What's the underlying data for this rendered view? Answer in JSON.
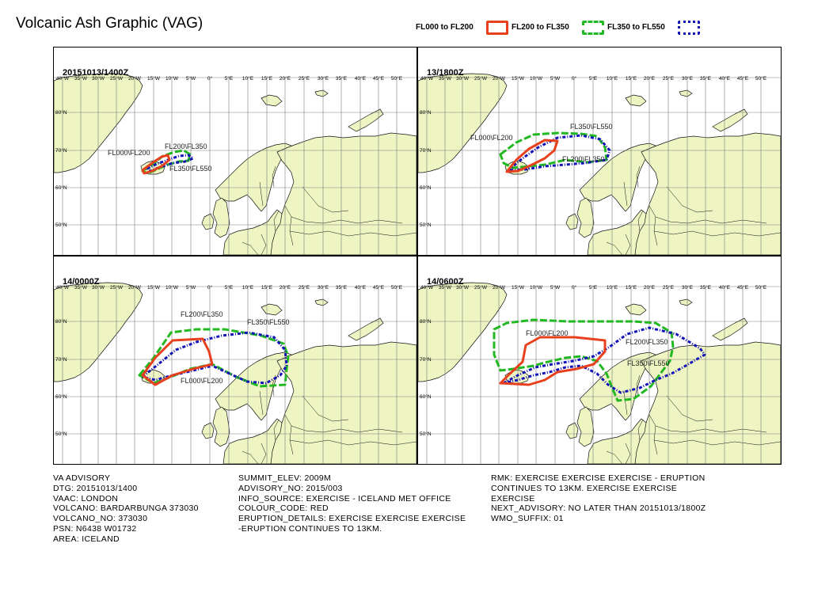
{
  "title": "Volcanic Ash Graphic (VAG)",
  "legend": [
    {
      "label": "FL000 to FL200",
      "color": "#e8401c",
      "style": "solid"
    },
    {
      "label": "FL200 to FL350",
      "color": "#22b822",
      "style": "dashed"
    },
    {
      "label": "FL350 to FL550",
      "color": "#1212b8",
      "style": "dotted"
    }
  ],
  "colors": {
    "land": "#eef5c2",
    "water": "#ffffff",
    "grid": "#7a7a7a",
    "coast": "#111111"
  },
  "map": {
    "lon_labels": [
      "40°W",
      "35°W",
      "30°W",
      "25°W",
      "20°W",
      "15°W",
      "10°W",
      "5°W",
      "0°",
      "5°E",
      "10°E",
      "15°E",
      "20°E",
      "25°E",
      "30°E",
      "35°E",
      "40°E",
      "45°E",
      "50°E"
    ],
    "lat_labels": [
      "80°N",
      "70°N",
      "60°N",
      "50°N"
    ]
  },
  "panels": [
    {
      "time": "20151013/1400Z",
      "labels": [
        "FL200\\FL350",
        "FL000\\FL200",
        "FL350\\FL550"
      ]
    },
    {
      "time": "13/1800Z",
      "labels": [
        "FL350\\FL550",
        "FL000\\FL200",
        "FL200\\FL350"
      ]
    },
    {
      "time": "14/0000Z",
      "labels": [
        "FL200\\FL350",
        "FL350\\FL550",
        "FL000\\FL200"
      ]
    },
    {
      "time": "14/0600Z",
      "labels": [
        "FL000\\FL200",
        "FL200\\FL350",
        "FL350\\FL550"
      ]
    }
  ],
  "info": {
    "col1": [
      "VA ADVISORY",
      "DTG: 20151013/1400",
      "VAAC: LONDON",
      "VOLCANO: BARDARBUNGA 373030",
      "VOLCANO_NO: 373030",
      "PSN: N6438 W01732",
      "AREA: ICELAND"
    ],
    "col2": [
      "SUMMIT_ELEV: 2009M",
      "ADVISORY_NO: 2015/003",
      "INFO_SOURCE: EXERCISE - ICELAND MET OFFICE",
      "COLOUR_CODE: RED",
      "ERUPTION_DETAILS: EXERCISE EXERCISE EXERCISE",
      "-ERUPTION CONTINUES TO 13KM."
    ],
    "col3": [
      "RMK: EXERCISE EXERCISE EXERCISE - ERUPTION",
      "CONTINUES TO 13KM. EXERCISE EXERCISE",
      "EXERCISE",
      "NEXT_ADVISORY: NO LATER THAN 20151013/1800Z",
      "WMO_SUFFIX: 01"
    ]
  }
}
